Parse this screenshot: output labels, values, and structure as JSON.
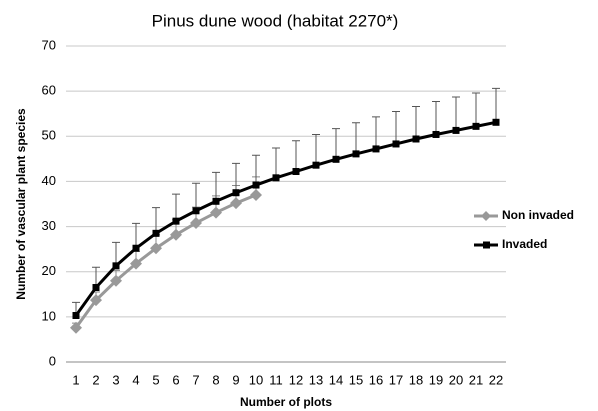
{
  "chart_data": {
    "type": "line",
    "title": "Pinus dune wood (habitat 2270*)",
    "xlabel": "Number of plots",
    "ylabel": "Number of vascular plant species",
    "categories": [
      1,
      2,
      3,
      4,
      5,
      6,
      7,
      8,
      9,
      10,
      11,
      12,
      13,
      14,
      15,
      16,
      17,
      18,
      19,
      20,
      21,
      22
    ],
    "series": [
      {
        "name": "Non invaded",
        "color": "#999999",
        "values": [
          7.6,
          13.7,
          18,
          21.8,
          25.2,
          28.2,
          30.8,
          33.1,
          35.2,
          37,
          null,
          null,
          null,
          null,
          null,
          null,
          null,
          null,
          null,
          null,
          null,
          null
        ],
        "errors": [
          1.0,
          1.8,
          2.3,
          2.7,
          3.0,
          3.3,
          3.5,
          3.7,
          3.9,
          4.0,
          null,
          null,
          null,
          null,
          null,
          null,
          null,
          null,
          null,
          null,
          null,
          null
        ]
      },
      {
        "name": "Invaded",
        "color": "#000000",
        "values": [
          10.3,
          16.5,
          21.3,
          25.2,
          28.5,
          31.2,
          33.5,
          35.6,
          37.5,
          39.2,
          40.8,
          42.2,
          43.6,
          44.9,
          46.1,
          47.2,
          48.3,
          49.4,
          50.4,
          51.3,
          52.2,
          53.1
        ],
        "errors": [
          2.9,
          4.5,
          5.2,
          5.5,
          5.7,
          6,
          6.1,
          6.4,
          6.5,
          6.6,
          6.6,
          6.8,
          6.8,
          6.8,
          6.9,
          7.1,
          7.2,
          7.2,
          7.3,
          7.4,
          7.4,
          7.5
        ]
      }
    ],
    "ylim": [
      0,
      70
    ],
    "yticks": [
      0,
      10,
      20,
      30,
      40,
      50,
      60,
      70
    ],
    "grid": true,
    "legend": "right"
  }
}
